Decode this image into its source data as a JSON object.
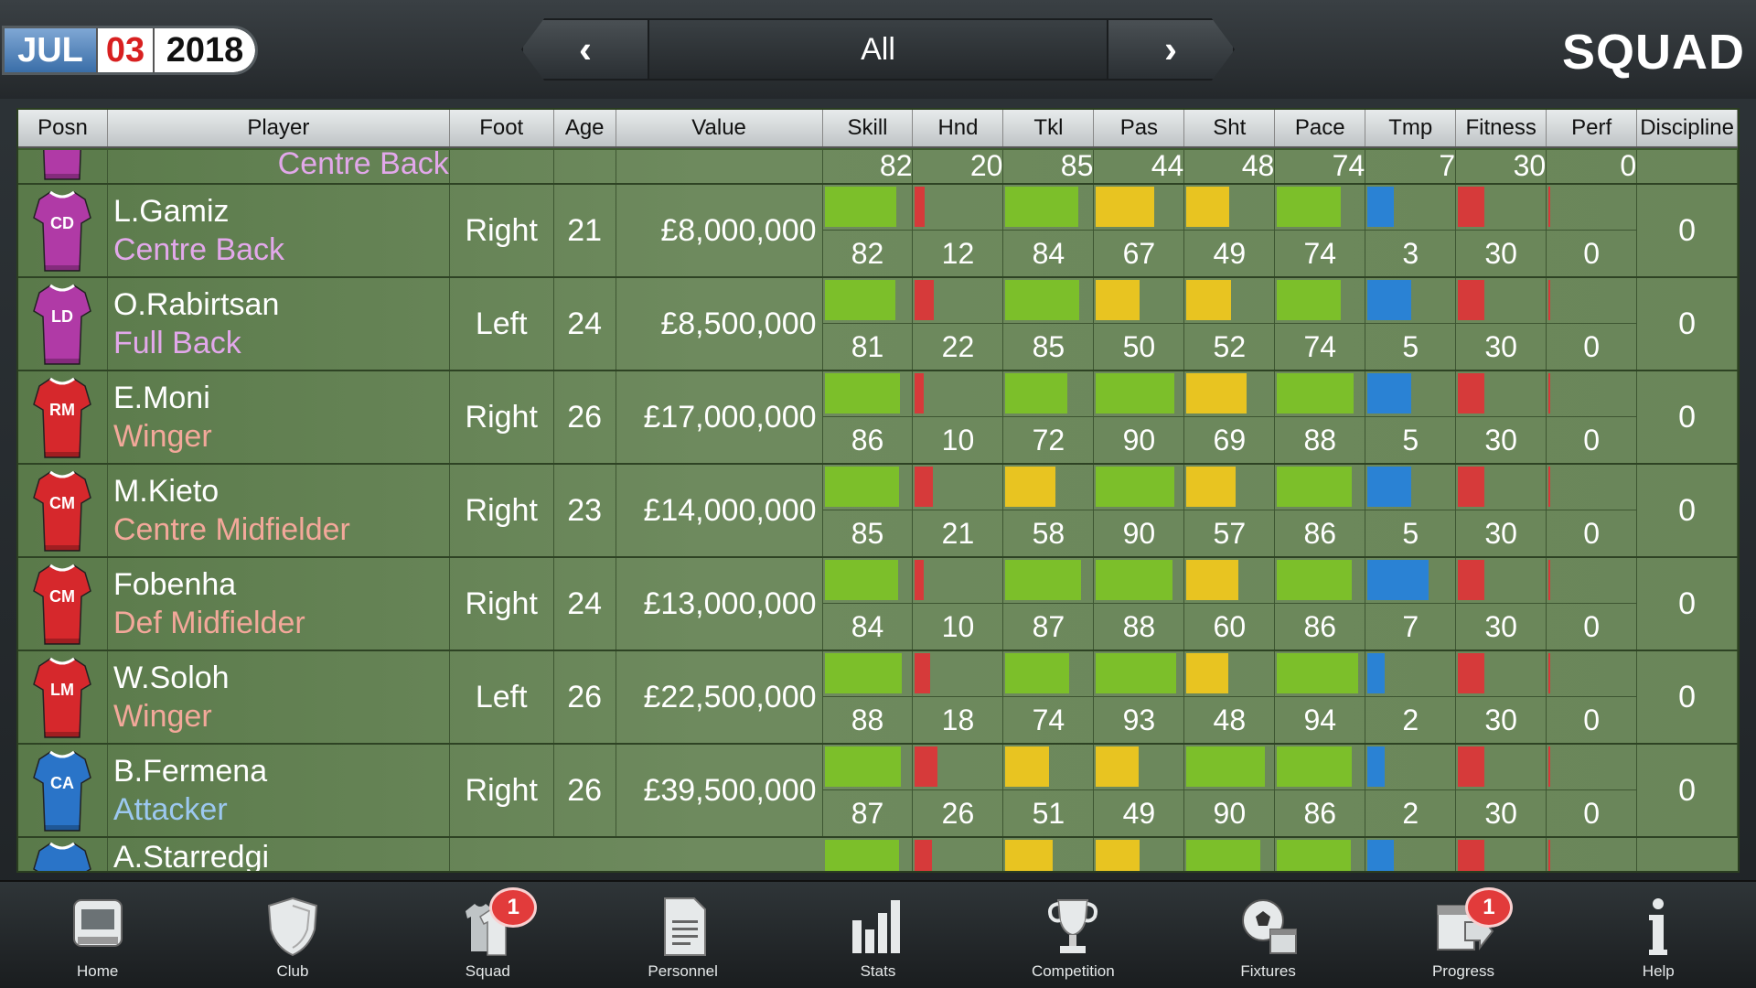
{
  "header": {
    "date": {
      "month": "JUL",
      "day": "03",
      "year": "2018"
    },
    "filter": {
      "label": "All",
      "prev": "‹",
      "next": "›"
    },
    "title": "SQUAD"
  },
  "columns": [
    "Posn",
    "Player",
    "Foot",
    "Age",
    "Value",
    "Skill",
    "Hnd",
    "Tkl",
    "Pas",
    "Sht",
    "Pace",
    "Tmp",
    "Fitness",
    "Perf",
    "Discipline"
  ],
  "stat_keys": [
    "skill",
    "hnd",
    "tkl",
    "pas",
    "sht",
    "pace",
    "tmp",
    "fitness",
    "perf"
  ],
  "colors": {
    "green": "#7cbf2a",
    "red": "#d63a3a",
    "yellow": "#e8c421",
    "blue": "#2a82d4",
    "role_purple": "#e2a8ea",
    "role_red": "#f3a89a",
    "role_blue": "#9cc8f0",
    "shirt_purple": "#b03aa6",
    "shirt_red": "#d6282c",
    "shirt_blue": "#2a74c8"
  },
  "top_partial": {
    "role": "Centre Back",
    "shirt_color": "shirt_purple",
    "role_color": "role_purple",
    "stats": {
      "skill": 82,
      "hnd": 20,
      "tkl": 85,
      "pas": 44,
      "sht": 48,
      "pace": 74,
      "tmp": 7,
      "fitness": 30,
      "perf": 0
    }
  },
  "players": [
    {
      "posn": "CD",
      "name": "L.Gamiz",
      "role": "Centre Back",
      "foot": "Right",
      "age": "21",
      "value": "£8,000,000",
      "discipline": "0",
      "shirt_color": "shirt_purple",
      "role_color": "role_purple",
      "stats": {
        "skill": 82,
        "hnd": 12,
        "tkl": 84,
        "pas": 67,
        "sht": 49,
        "pace": 74,
        "tmp": 3,
        "fitness": 30,
        "perf": 0
      },
      "bar_colors": {
        "skill": "green",
        "hnd": "red",
        "tkl": "green",
        "pas": "yellow",
        "sht": "yellow",
        "pace": "green",
        "tmp": "blue",
        "fitness": "red",
        "perf": "red"
      }
    },
    {
      "posn": "LD",
      "name": "O.Rabirtsan",
      "role": "Full Back",
      "foot": "Left",
      "age": "24",
      "value": "£8,500,000",
      "discipline": "0",
      "shirt_color": "shirt_purple",
      "role_color": "role_purple",
      "stats": {
        "skill": 81,
        "hnd": 22,
        "tkl": 85,
        "pas": 50,
        "sht": 52,
        "pace": 74,
        "tmp": 5,
        "fitness": 30,
        "perf": 0
      },
      "bar_colors": {
        "skill": "green",
        "hnd": "red",
        "tkl": "green",
        "pas": "yellow",
        "sht": "yellow",
        "pace": "green",
        "tmp": "blue",
        "fitness": "red",
        "perf": "red"
      }
    },
    {
      "posn": "RM",
      "name": "E.Moni",
      "role": "Winger",
      "foot": "Right",
      "age": "26",
      "value": "£17,000,000",
      "discipline": "0",
      "shirt_color": "shirt_red",
      "role_color": "role_red",
      "stats": {
        "skill": 86,
        "hnd": 10,
        "tkl": 72,
        "pas": 90,
        "sht": 69,
        "pace": 88,
        "tmp": 5,
        "fitness": 30,
        "perf": 0
      },
      "bar_colors": {
        "skill": "green",
        "hnd": "red",
        "tkl": "green",
        "pas": "green",
        "sht": "yellow",
        "pace": "green",
        "tmp": "blue",
        "fitness": "red",
        "perf": "red"
      }
    },
    {
      "posn": "CM",
      "name": "M.Kieto",
      "role": "Centre Midfielder",
      "foot": "Right",
      "age": "23",
      "value": "£14,000,000",
      "discipline": "0",
      "shirt_color": "shirt_red",
      "role_color": "role_red",
      "stats": {
        "skill": 85,
        "hnd": 21,
        "tkl": 58,
        "pas": 90,
        "sht": 57,
        "pace": 86,
        "tmp": 5,
        "fitness": 30,
        "perf": 0
      },
      "bar_colors": {
        "skill": "green",
        "hnd": "red",
        "tkl": "yellow",
        "pas": "green",
        "sht": "yellow",
        "pace": "green",
        "tmp": "blue",
        "fitness": "red",
        "perf": "red"
      }
    },
    {
      "posn": "CM",
      "name": "Fobenha",
      "role": "Def Midfielder",
      "foot": "Right",
      "age": "24",
      "value": "£13,000,000",
      "discipline": "0",
      "shirt_color": "shirt_red",
      "role_color": "role_red",
      "stats": {
        "skill": 84,
        "hnd": 10,
        "tkl": 87,
        "pas": 88,
        "sht": 60,
        "pace": 86,
        "tmp": 7,
        "fitness": 30,
        "perf": 0
      },
      "bar_colors": {
        "skill": "green",
        "hnd": "red",
        "tkl": "green",
        "pas": "green",
        "sht": "yellow",
        "pace": "green",
        "tmp": "blue",
        "fitness": "red",
        "perf": "red"
      }
    },
    {
      "posn": "LM",
      "name": "W.Soloh",
      "role": "Winger",
      "foot": "Left",
      "age": "26",
      "value": "£22,500,000",
      "discipline": "0",
      "shirt_color": "shirt_red",
      "role_color": "role_red",
      "stats": {
        "skill": 88,
        "hnd": 18,
        "tkl": 74,
        "pas": 93,
        "sht": 48,
        "pace": 94,
        "tmp": 2,
        "fitness": 30,
        "perf": 0
      },
      "bar_colors": {
        "skill": "green",
        "hnd": "red",
        "tkl": "green",
        "pas": "green",
        "sht": "yellow",
        "pace": "green",
        "tmp": "blue",
        "fitness": "red",
        "perf": "red"
      }
    },
    {
      "posn": "CA",
      "name": "B.Fermena",
      "role": "Attacker",
      "foot": "Right",
      "age": "26",
      "value": "£39,500,000",
      "discipline": "0",
      "shirt_color": "shirt_blue",
      "role_color": "role_blue",
      "stats": {
        "skill": 87,
        "hnd": 26,
        "tkl": 51,
        "pas": 49,
        "sht": 90,
        "pace": 86,
        "tmp": 2,
        "fitness": 30,
        "perf": 0
      },
      "bar_colors": {
        "skill": "green",
        "hnd": "red",
        "tkl": "yellow",
        "pas": "yellow",
        "sht": "green",
        "pace": "green",
        "tmp": "blue",
        "fitness": "red",
        "perf": "red"
      }
    }
  ],
  "bottom_partial": {
    "name": "A.Starredgi",
    "shirt_color": "shirt_blue",
    "bar_colors": {
      "skill": "green",
      "hnd": "red",
      "tkl": "yellow",
      "pas": "yellow",
      "sht": "green",
      "pace": "green",
      "tmp": "blue",
      "fitness": "red",
      "perf": "red"
    },
    "bar_values": {
      "skill": 85,
      "hnd": 20,
      "tkl": 55,
      "pas": 50,
      "sht": 85,
      "pace": 85,
      "tmp": 3,
      "fitness": 30,
      "perf": 0
    }
  },
  "nav": [
    {
      "label": "Home",
      "icon": "home-icon"
    },
    {
      "label": "Club",
      "icon": "shield-icon"
    },
    {
      "label": "Squad",
      "icon": "shirts-icon",
      "badge": "1"
    },
    {
      "label": "Personnel",
      "icon": "document-icon"
    },
    {
      "label": "Stats",
      "icon": "bar-chart-icon"
    },
    {
      "label": "Competition",
      "icon": "trophy-icon"
    },
    {
      "label": "Fixtures",
      "icon": "ball-calendar-icon"
    },
    {
      "label": "Progress",
      "icon": "calendar-arrow-icon",
      "badge": "1"
    },
    {
      "label": "Help",
      "icon": "info-icon"
    }
  ]
}
